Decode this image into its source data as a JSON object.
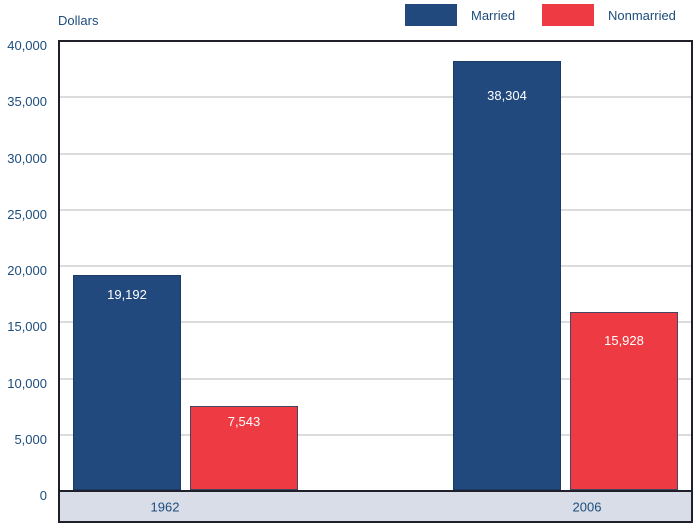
{
  "unit_label": "Dollars",
  "legend": [
    {
      "label": "Married",
      "color": "#21497E"
    },
    {
      "label": "Nonmarried",
      "color": "#EE3B43"
    }
  ],
  "x_axis": {
    "categories": [
      "1962",
      "2006"
    ]
  },
  "chart_data": {
    "type": "bar",
    "title": "",
    "ylabel": "Dollars",
    "xlabel": "",
    "categories": [
      "1962",
      "2006"
    ],
    "series": [
      {
        "name": "Married",
        "color": "#21497E",
        "values": [
          19192,
          38304
        ],
        "labels": [
          "19,192",
          "38,304"
        ]
      },
      {
        "name": "Nonmarried",
        "color": "#EE3B43",
        "values": [
          7543,
          15928
        ],
        "labels": [
          "7,543",
          "15,928"
        ]
      }
    ],
    "ylim": [
      0,
      40000
    ],
    "ytick_interval": 5000,
    "ytick_labels": [
      "0",
      "5,000",
      "10,000",
      "15,000",
      "20,000",
      "25,000",
      "30,000",
      "35,000",
      "40,000"
    ],
    "grid": true,
    "legend_position": "top-right",
    "value_labels_inside_bars": true,
    "band_color": "#D8DDE7"
  }
}
